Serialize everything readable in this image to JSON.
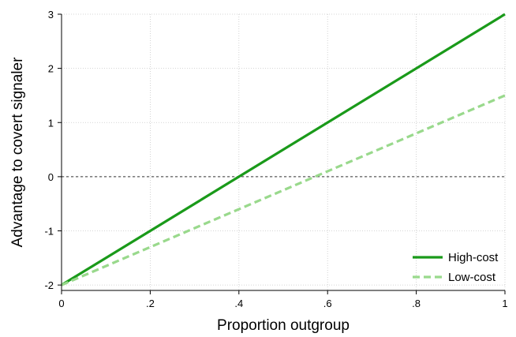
{
  "chart_data": {
    "type": "line",
    "title": "",
    "xlabel": "Proportion outgroup",
    "ylabel": "Advantage to covert signaler",
    "xlim": [
      0,
      1
    ],
    "ylim": [
      -2.1,
      3
    ],
    "x_ticks": [
      {
        "value": 0,
        "label": "0"
      },
      {
        "value": 0.2,
        "label": ".2"
      },
      {
        "value": 0.4,
        "label": ".4"
      },
      {
        "value": 0.6,
        "label": ".6"
      },
      {
        "value": 0.8,
        "label": ".8"
      },
      {
        "value": 1,
        "label": "1"
      }
    ],
    "y_ticks": [
      {
        "value": -2,
        "label": "-2"
      },
      {
        "value": -1,
        "label": "-1"
      },
      {
        "value": 0,
        "label": "0"
      },
      {
        "value": 1,
        "label": "1"
      },
      {
        "value": 2,
        "label": "2"
      },
      {
        "value": 3,
        "label": "3"
      }
    ],
    "grid": true,
    "reference_line": {
      "y": 0,
      "style": "dashed",
      "color": "#333333"
    },
    "legend_position": "bottom-right",
    "series": [
      {
        "name": "High-cost",
        "x": [
          0,
          1
        ],
        "y": [
          -2,
          3
        ],
        "color": "#1a9a1a",
        "style": "solid"
      },
      {
        "name": "Low-cost",
        "x": [
          0,
          1
        ],
        "y": [
          -2,
          1.5
        ],
        "color": "#99d98c",
        "style": "dashed"
      }
    ]
  }
}
